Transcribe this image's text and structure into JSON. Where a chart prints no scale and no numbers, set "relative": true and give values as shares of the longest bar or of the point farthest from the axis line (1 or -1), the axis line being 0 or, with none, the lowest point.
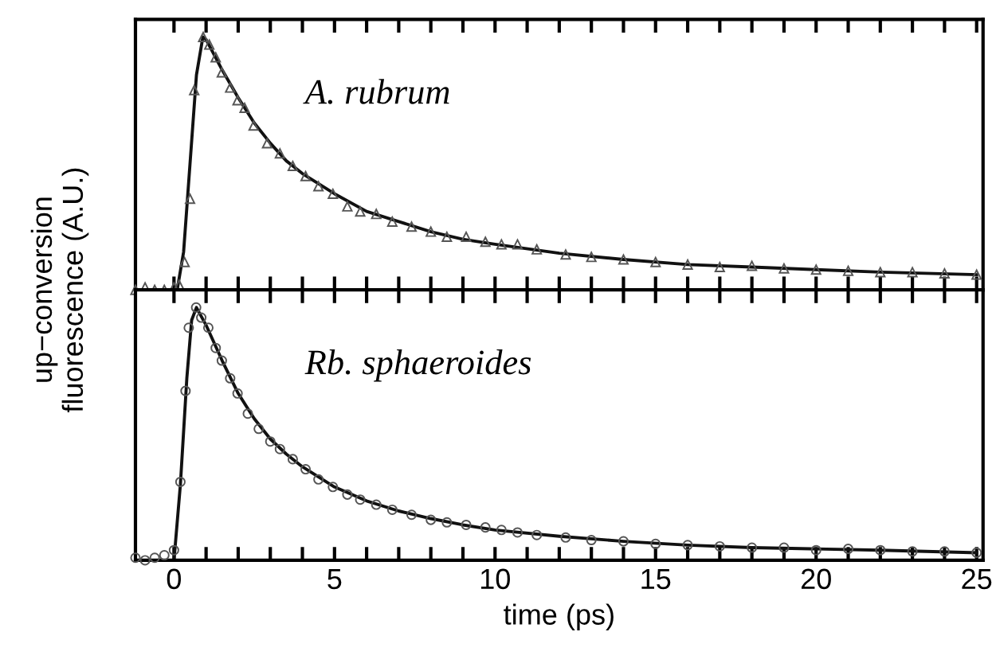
{
  "chart_data": [
    {
      "type": "scatter",
      "relative": true,
      "tick_labels": false,
      "marker": "triangle",
      "xlim": [
        -1.2,
        25.2
      ],
      "xticks": [
        0,
        {
          "value": 1,
          "label": null
        },
        {
          "value": 2,
          "label": null
        },
        {
          "value": 3,
          "label": null
        },
        {
          "value": 4,
          "label": null
        },
        5,
        {
          "value": 6,
          "label": null
        },
        {
          "value": 7,
          "label": null
        },
        {
          "value": 8,
          "label": null
        },
        {
          "value": 9,
          "label": null
        },
        10,
        {
          "value": 11,
          "label": null
        },
        {
          "value": 12,
          "label": null
        },
        {
          "value": 13,
          "label": null
        },
        {
          "value": 14,
          "label": null
        },
        15,
        {
          "value": 16,
          "label": null
        },
        {
          "value": 17,
          "label": null
        },
        {
          "value": 18,
          "label": null
        },
        {
          "value": 19,
          "label": null
        },
        20,
        {
          "value": 21,
          "label": null
        },
        {
          "value": 22,
          "label": null
        },
        {
          "value": 23,
          "label": null
        },
        {
          "value": 24,
          "label": null
        },
        25
      ],
      "ylabel": "up−conversion\nfluorescence (A.U.)",
      "annotations": [
        "A. rubrum"
      ],
      "series": [
        {
          "color": "#555555",
          "x": [
            -1.2,
            -0.9,
            -0.6,
            -0.3,
            0.0,
            0.16,
            0.33,
            0.5,
            0.63,
            0.91,
            1.1,
            1.3,
            1.49,
            1.75,
            1.98,
            2.2,
            2.48,
            2.9,
            3.3,
            3.7,
            4.1,
            4.5,
            4.95,
            5.4,
            5.8,
            6.3,
            6.8,
            7.4,
            8.0,
            8.5,
            9.1,
            9.7,
            10.2,
            10.7,
            11.3,
            12.2,
            13,
            14,
            15,
            16,
            17,
            18,
            19,
            20,
            21,
            22,
            23,
            24,
            25
          ],
          "values": [
            0.0,
            0.01,
            0.0,
            0.0,
            0.01,
            0.02,
            0.11,
            0.36,
            0.79,
            1.0,
            0.97,
            0.92,
            0.86,
            0.8,
            0.75,
            0.72,
            0.65,
            0.58,
            0.54,
            0.49,
            0.45,
            0.41,
            0.38,
            0.33,
            0.31,
            0.3,
            0.27,
            0.25,
            0.23,
            0.21,
            0.21,
            0.19,
            0.18,
            0.18,
            0.16,
            0.14,
            0.13,
            0.12,
            0.11,
            0.1,
            0.09,
            0.095,
            0.085,
            0.08,
            0.075,
            0.07,
            0.07,
            0.065,
            0.06
          ]
        },
        {
          "type": "line",
          "marker": "none",
          "color": "#111111",
          "x": [
            -1.2,
            0.1,
            0.3,
            0.5,
            0.7,
            0.9,
            1.0,
            1.5,
            2.0,
            2.5,
            3.0,
            3.5,
            4,
            5,
            6,
            7,
            8,
            9,
            10,
            12,
            14,
            16,
            18,
            20,
            22,
            25
          ],
          "values": [
            0,
            0,
            0.15,
            0.5,
            0.85,
            1.0,
            0.99,
            0.87,
            0.76,
            0.66,
            0.58,
            0.51,
            0.46,
            0.38,
            0.31,
            0.27,
            0.23,
            0.2,
            0.18,
            0.145,
            0.12,
            0.1,
            0.09,
            0.08,
            0.07,
            0.06
          ]
        }
      ]
    },
    {
      "type": "scatter",
      "relative": true,
      "tick_labels": "x",
      "marker": "circle",
      "xlim": [
        -1.2,
        25.2
      ],
      "xticks": [
        0,
        {
          "value": 1,
          "label": null
        },
        {
          "value": 2,
          "label": null
        },
        {
          "value": 3,
          "label": null
        },
        {
          "value": 4,
          "label": null
        },
        5,
        {
          "value": 6,
          "label": null
        },
        {
          "value": 7,
          "label": null
        },
        {
          "value": 8,
          "label": null
        },
        {
          "value": 9,
          "label": null
        },
        10,
        {
          "value": 11,
          "label": null
        },
        {
          "value": 12,
          "label": null
        },
        {
          "value": 13,
          "label": null
        },
        {
          "value": 14,
          "label": null
        },
        15,
        {
          "value": 16,
          "label": null
        },
        {
          "value": 17,
          "label": null
        },
        {
          "value": 18,
          "label": null
        },
        {
          "value": 19,
          "label": null
        },
        20,
        {
          "value": 21,
          "label": null
        },
        {
          "value": 22,
          "label": null
        },
        {
          "value": 23,
          "label": null
        },
        {
          "value": 24,
          "label": null
        },
        25
      ],
      "xlabel": "time (ps)",
      "annotations": [
        "Rb. sphaeroides"
      ],
      "series": [
        {
          "color": "#555555",
          "x": [
            -1.2,
            -0.9,
            -0.6,
            -0.3,
            0,
            0.2,
            0.36,
            0.46,
            0.69,
            0.85,
            1.07,
            1.3,
            1.49,
            1.75,
            1.98,
            2.3,
            2.64,
            3.0,
            3.3,
            3.7,
            4.1,
            4.5,
            4.95,
            5.4,
            5.8,
            6.3,
            6.8,
            7.4,
            8.0,
            8.5,
            9.1,
            9.7,
            10.2,
            10.7,
            11.3,
            12.2,
            13,
            14,
            15,
            16,
            17,
            18,
            19,
            20,
            21,
            22,
            23,
            24,
            25
          ],
          "values": [
            0.01,
            0.0,
            0.01,
            0.02,
            0.04,
            0.31,
            0.67,
            0.92,
            1.0,
            0.96,
            0.92,
            0.84,
            0.79,
            0.72,
            0.66,
            0.58,
            0.52,
            0.47,
            0.44,
            0.4,
            0.36,
            0.32,
            0.29,
            0.26,
            0.24,
            0.22,
            0.2,
            0.18,
            0.16,
            0.15,
            0.14,
            0.13,
            0.12,
            0.11,
            0.1,
            0.09,
            0.08,
            0.075,
            0.065,
            0.06,
            0.055,
            0.05,
            0.05,
            0.04,
            0.045,
            0.04,
            0.035,
            0.035,
            0.03
          ]
        },
        {
          "type": "line",
          "marker": "none",
          "color": "#111111",
          "x": [
            -1.2,
            0,
            0.2,
            0.4,
            0.55,
            0.7,
            1.0,
            1.5,
            2,
            2.5,
            3,
            3.5,
            4,
            5,
            6,
            7,
            8,
            9,
            10,
            12,
            14,
            16,
            18,
            20,
            22,
            25
          ],
          "values": [
            0,
            0,
            0.3,
            0.72,
            0.95,
            1.0,
            0.93,
            0.79,
            0.66,
            0.56,
            0.48,
            0.42,
            0.37,
            0.29,
            0.235,
            0.195,
            0.165,
            0.14,
            0.12,
            0.095,
            0.075,
            0.06,
            0.05,
            0.045,
            0.04,
            0.03
          ]
        }
      ]
    }
  ]
}
